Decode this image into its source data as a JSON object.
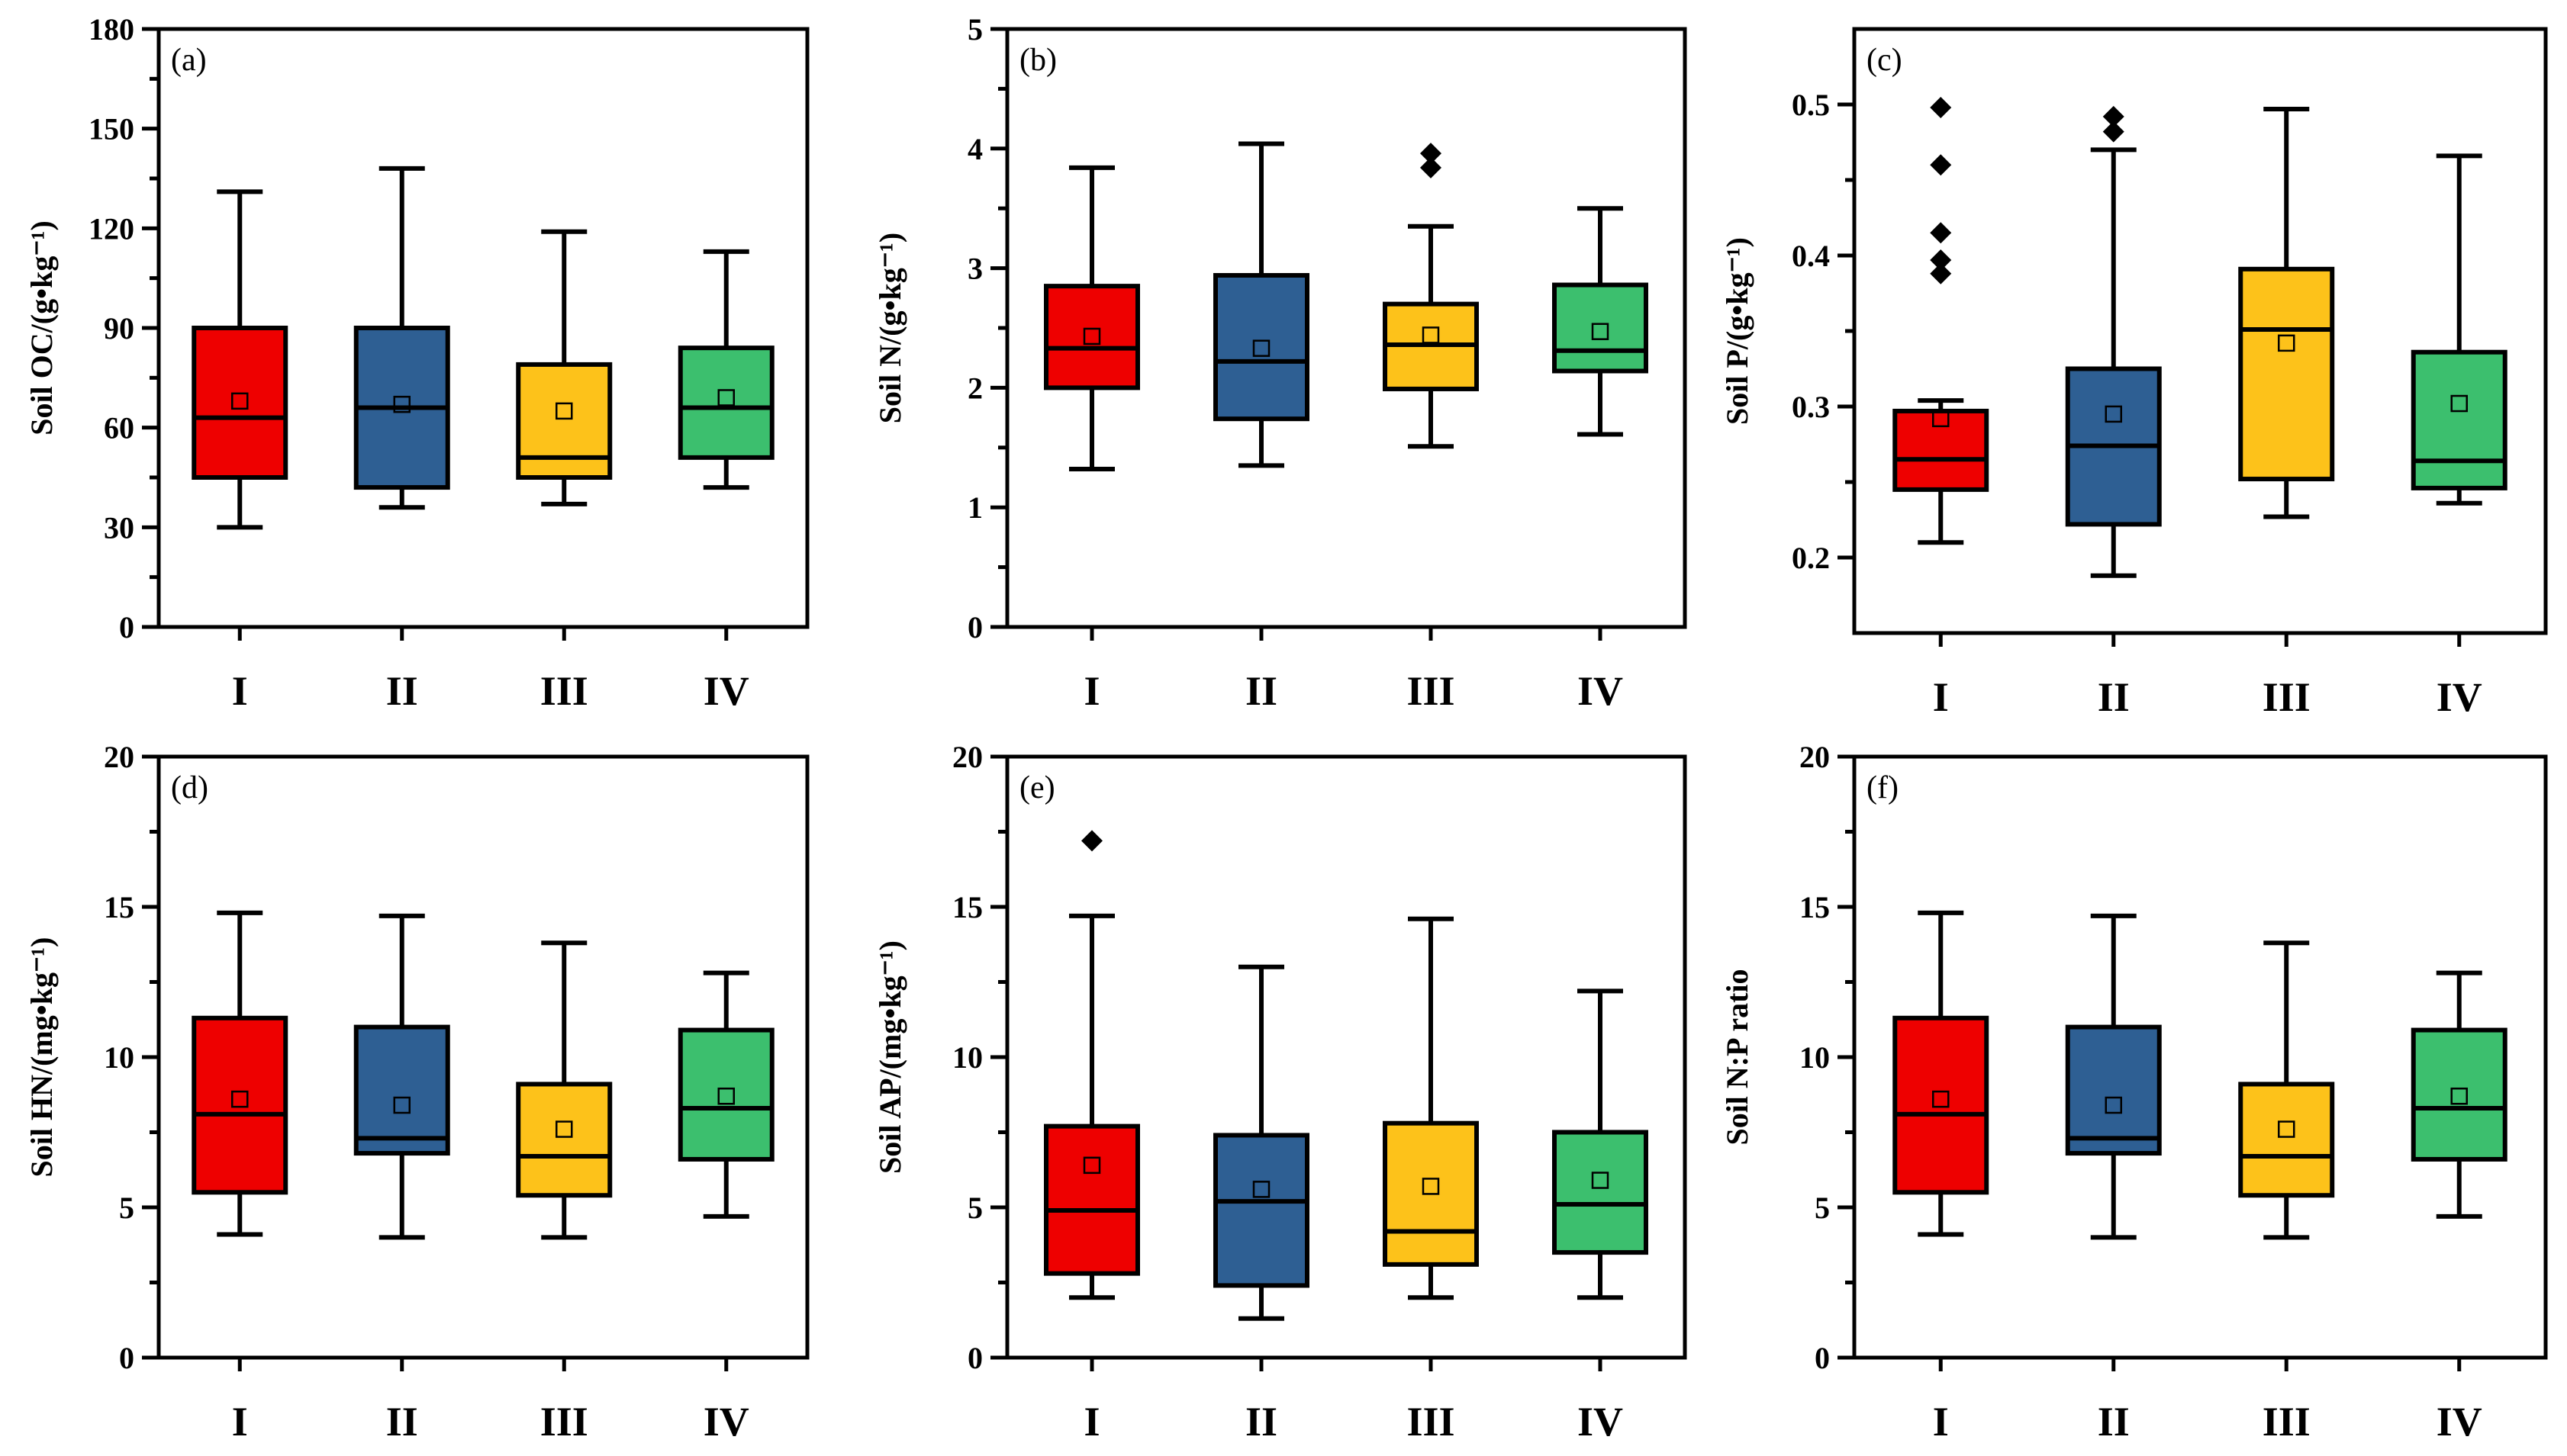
{
  "chart_data": [
    {
      "type": "box",
      "panel_label": "(a)",
      "ylabel": "Soil OC/(g•kg⁻¹)",
      "ylim": [
        0,
        180
      ],
      "yticks": [
        0,
        30,
        60,
        90,
        120,
        150,
        180
      ],
      "ytick_labels": [
        "0",
        "30",
        "60",
        "90",
        "120",
        "150",
        "180"
      ],
      "categories": [
        "I",
        "II",
        "III",
        "IV"
      ],
      "colors": [
        "#ee0000",
        "#2e5f93",
        "#fdc21a",
        "#3cbf6e"
      ],
      "boxes": [
        {
          "min": 30,
          "q1": 45,
          "median": 63,
          "q3": 90,
          "max": 131,
          "mean": 68,
          "outliers": []
        },
        {
          "min": 36,
          "q1": 42,
          "median": 66,
          "q3": 90,
          "max": 138,
          "mean": 67,
          "outliers": []
        },
        {
          "min": 37,
          "q1": 45,
          "median": 51,
          "q3": 79,
          "max": 119,
          "mean": 65,
          "outliers": []
        },
        {
          "min": 42,
          "q1": 51,
          "median": 66,
          "q3": 84,
          "max": 113,
          "mean": 69,
          "outliers": []
        }
      ]
    },
    {
      "type": "box",
      "panel_label": "(b)",
      "ylabel": "Soil N/(g•kg⁻¹)",
      "ylim": [
        0,
        5
      ],
      "yticks": [
        0,
        1,
        2,
        3,
        4,
        5
      ],
      "ytick_labels": [
        "0",
        "1",
        "2",
        "3",
        "4",
        "5"
      ],
      "categories": [
        "I",
        "II",
        "III",
        "IV"
      ],
      "colors": [
        "#ee0000",
        "#2e5f93",
        "#fdc21a",
        "#3cbf6e"
      ],
      "boxes": [
        {
          "min": 1.32,
          "q1": 2.0,
          "median": 2.33,
          "q3": 2.85,
          "max": 3.84,
          "mean": 2.43,
          "outliers": []
        },
        {
          "min": 1.35,
          "q1": 1.74,
          "median": 2.22,
          "q3": 2.94,
          "max": 4.04,
          "mean": 2.33,
          "outliers": []
        },
        {
          "min": 1.51,
          "q1": 1.99,
          "median": 2.36,
          "q3": 2.7,
          "max": 3.35,
          "mean": 2.44,
          "outliers": [
            3.84,
            3.96
          ]
        },
        {
          "min": 1.61,
          "q1": 2.14,
          "median": 2.31,
          "q3": 2.86,
          "max": 3.5,
          "mean": 2.47,
          "outliers": []
        }
      ]
    },
    {
      "type": "box",
      "panel_label": "(c)",
      "ylabel": "Soil P/(g•kg⁻¹)",
      "ylim": [
        0.15,
        0.55
      ],
      "yticks": [
        0.2,
        0.3,
        0.4,
        0.5
      ],
      "ytick_labels": [
        "0.2",
        "0.3",
        "0.4",
        "0.5"
      ],
      "categories": [
        "I",
        "II",
        "III",
        "IV"
      ],
      "colors": [
        "#ee0000",
        "#2e5f93",
        "#fdc21a",
        "#3cbf6e"
      ],
      "boxes": [
        {
          "min": 0.21,
          "q1": 0.245,
          "median": 0.265,
          "q3": 0.297,
          "max": 0.304,
          "mean": 0.292,
          "outliers": [
            0.388,
            0.397,
            0.415,
            0.46,
            0.498
          ]
        },
        {
          "min": 0.188,
          "q1": 0.222,
          "median": 0.274,
          "q3": 0.325,
          "max": 0.47,
          "mean": 0.295,
          "outliers": [
            0.482,
            0.492
          ]
        },
        {
          "min": 0.227,
          "q1": 0.252,
          "median": 0.351,
          "q3": 0.391,
          "max": 0.497,
          "mean": 0.342,
          "outliers": []
        },
        {
          "min": 0.236,
          "q1": 0.246,
          "median": 0.264,
          "q3": 0.336,
          "max": 0.466,
          "mean": 0.302,
          "outliers": []
        }
      ]
    },
    {
      "type": "box",
      "panel_label": "(d)",
      "ylabel": "Soil HN/(mg•kg⁻¹)",
      "ylim": [
        0,
        20
      ],
      "yticks": [
        0,
        5,
        10,
        15,
        20
      ],
      "ytick_labels": [
        "0",
        "5",
        "10",
        "15",
        "20"
      ],
      "categories": [
        "I",
        "II",
        "III",
        "IV"
      ],
      "colors": [
        "#ee0000",
        "#2e5f93",
        "#fdc21a",
        "#3cbf6e"
      ],
      "boxes": [
        {
          "min": 4.1,
          "q1": 5.5,
          "median": 8.1,
          "q3": 11.3,
          "max": 14.8,
          "mean": 8.6,
          "outliers": []
        },
        {
          "min": 4.0,
          "q1": 6.8,
          "median": 7.3,
          "q3": 11.0,
          "max": 14.7,
          "mean": 8.4,
          "outliers": []
        },
        {
          "min": 4.0,
          "q1": 5.4,
          "median": 6.7,
          "q3": 9.1,
          "max": 13.8,
          "mean": 7.6,
          "outliers": []
        },
        {
          "min": 4.7,
          "q1": 6.6,
          "median": 8.3,
          "q3": 10.9,
          "max": 12.8,
          "mean": 8.7,
          "outliers": []
        }
      ]
    },
    {
      "type": "box",
      "panel_label": "(e)",
      "ylabel": "Soil AP/(mg•kg⁻¹)",
      "ylim": [
        0,
        20
      ],
      "yticks": [
        0,
        5,
        10,
        15,
        20
      ],
      "ytick_labels": [
        "0",
        "5",
        "10",
        "15",
        "20"
      ],
      "categories": [
        "I",
        "II",
        "III",
        "IV"
      ],
      "colors": [
        "#ee0000",
        "#2e5f93",
        "#fdc21a",
        "#3cbf6e"
      ],
      "boxes": [
        {
          "min": 2.0,
          "q1": 2.8,
          "median": 4.9,
          "q3": 7.7,
          "max": 14.7,
          "mean": 6.4,
          "outliers": [
            17.2
          ]
        },
        {
          "min": 1.3,
          "q1": 2.4,
          "median": 5.2,
          "q3": 7.4,
          "max": 13.0,
          "mean": 5.6,
          "outliers": []
        },
        {
          "min": 2.0,
          "q1": 3.1,
          "median": 4.2,
          "q3": 7.8,
          "max": 14.6,
          "mean": 5.7,
          "outliers": []
        },
        {
          "min": 2.0,
          "q1": 3.5,
          "median": 5.1,
          "q3": 7.5,
          "max": 12.2,
          "mean": 5.9,
          "outliers": []
        }
      ]
    },
    {
      "type": "box",
      "panel_label": "(f)",
      "ylabel": "Soil N:P ratio",
      "ylim": [
        0,
        20
      ],
      "yticks": [
        0,
        5,
        10,
        15,
        20
      ],
      "ytick_labels": [
        "0",
        "5",
        "10",
        "15",
        "20"
      ],
      "categories": [
        "I",
        "II",
        "III",
        "IV"
      ],
      "colors": [
        "#ee0000",
        "#2e5f93",
        "#fdc21a",
        "#3cbf6e"
      ],
      "boxes": [
        {
          "min": 4.1,
          "q1": 5.5,
          "median": 8.1,
          "q3": 11.3,
          "max": 14.8,
          "mean": 8.6,
          "outliers": []
        },
        {
          "min": 4.0,
          "q1": 6.8,
          "median": 7.3,
          "q3": 11.0,
          "max": 14.7,
          "mean": 8.4,
          "outliers": []
        },
        {
          "min": 4.0,
          "q1": 5.4,
          "median": 6.7,
          "q3": 9.1,
          "max": 13.8,
          "mean": 7.6,
          "outliers": []
        },
        {
          "min": 4.7,
          "q1": 6.6,
          "median": 8.3,
          "q3": 10.9,
          "max": 12.8,
          "mean": 8.7,
          "outliers": []
        }
      ]
    }
  ]
}
